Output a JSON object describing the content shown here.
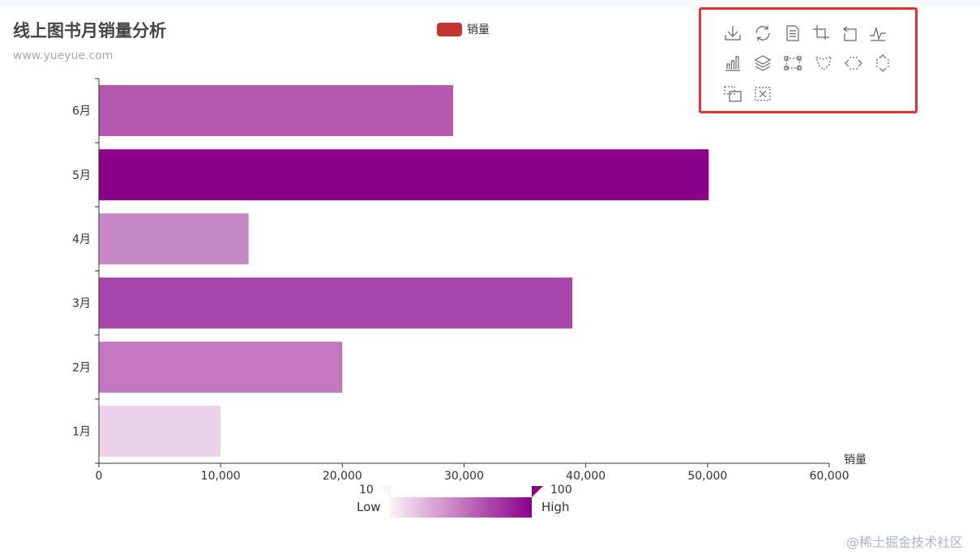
{
  "title": "线上图书月销量分析",
  "subtitle": "www.yueyue.com",
  "legend": {
    "label": "销量",
    "color": "#c23531"
  },
  "toolbox": {
    "icons": [
      "download-icon",
      "refresh-icon",
      "data-view-icon",
      "zoom-icon",
      "zoom-reset-icon",
      "line-chart-icon",
      "bar-chart-icon",
      "stack-icon",
      "rect-brush-icon",
      "polygon-brush-icon",
      "line-x-brush-icon",
      "line-y-brush-icon",
      "keep-brush-icon",
      "clear-brush-icon"
    ]
  },
  "visual_map": {
    "min": "10",
    "max": "100",
    "low_text": "Low",
    "high_text": "High",
    "colors": [
      "#fdf0f6",
      "#8b008b"
    ]
  },
  "chart_data": {
    "type": "bar",
    "orientation": "horizontal",
    "categories": [
      "1月",
      "2月",
      "3月",
      "4月",
      "5月",
      "6月"
    ],
    "series": [
      {
        "name": "销量",
        "values": [
          10000,
          20000,
          38900,
          12300,
          50100,
          29100
        ]
      }
    ],
    "bar_colors": [
      "#ecd0e8",
      "#c278c0",
      "#a845a9",
      "#c888c6",
      "#8b008b",
      "#b557af"
    ],
    "xlabel": "销量",
    "xlim": [
      0,
      60000
    ],
    "x_ticks": [
      "0",
      "10,000",
      "20,000",
      "30,000",
      "40,000",
      "50,000",
      "60,000"
    ],
    "grid": false
  },
  "watermark": "@稀土掘金技术社区"
}
